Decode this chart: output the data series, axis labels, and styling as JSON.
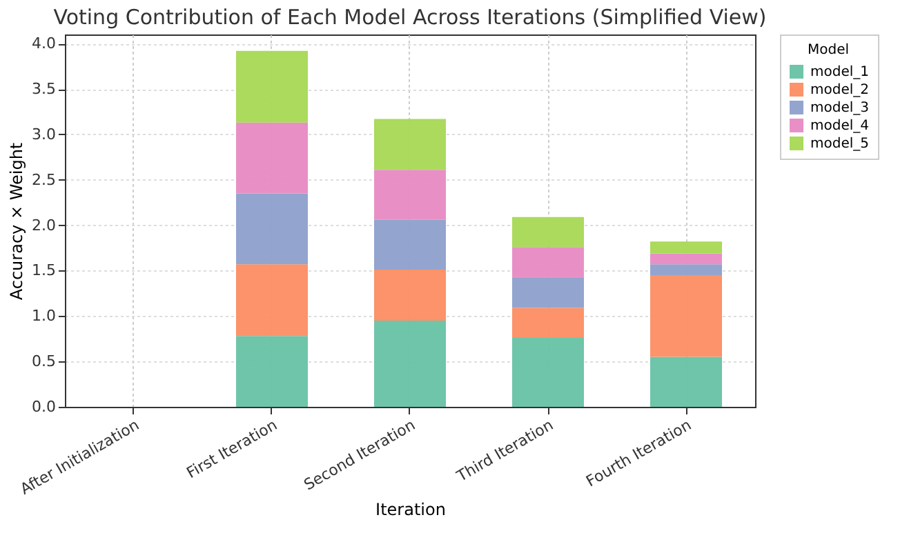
{
  "chart_data": {
    "type": "bar",
    "stacked": true,
    "title": "Voting Contribution of Each Model Across Iterations (Simplified View)",
    "xlabel": "Iteration",
    "ylabel": "Accuracy × Weight",
    "legend_title": "Model",
    "legend": "top right",
    "categories": [
      "After Initialization",
      "First Iteration",
      "Second Iteration",
      "Third Iteration",
      "Fourth Iteration"
    ],
    "series": [
      {
        "name": "model_1",
        "color": "#66c2a5",
        "values": [
          0,
          0.78,
          0.95,
          0.76,
          0.55
        ]
      },
      {
        "name": "model_2",
        "color": "#fc8d62",
        "values": [
          0,
          0.79,
          0.56,
          0.33,
          0.9
        ]
      },
      {
        "name": "model_3",
        "color": "#8da0cb",
        "values": [
          0,
          0.78,
          0.55,
          0.33,
          0.12
        ]
      },
      {
        "name": "model_4",
        "color": "#e78ac3",
        "values": [
          0,
          0.78,
          0.55,
          0.34,
          0.12
        ]
      },
      {
        "name": "model_5",
        "color": "#a6d854",
        "values": [
          0,
          0.79,
          0.56,
          0.33,
          0.13
        ]
      }
    ],
    "ylim": [
      0,
      4.1
    ],
    "yticks": [
      {
        "value": 0,
        "label": "0.0"
      },
      0.5,
      {
        "value": 1,
        "label": "1.0"
      },
      1.5,
      {
        "value": 2,
        "label": "2.0"
      },
      2.5,
      {
        "value": 3,
        "label": "3.0"
      },
      3.5,
      {
        "value": 4,
        "label": "4.0"
      }
    ],
    "grid": true
  }
}
